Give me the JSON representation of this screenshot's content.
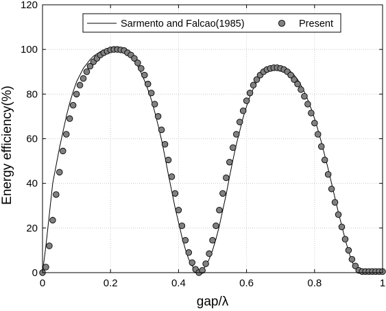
{
  "chart_data": {
    "type": "line",
    "xlabel": "gap/λ",
    "ylabel": "Energy efficiency(%)",
    "xlim": [
      0,
      1
    ],
    "ylim": [
      0,
      120
    ],
    "xticks": [
      "0",
      "0.2",
      "0.4",
      "0.6",
      "0.8",
      "1"
    ],
    "yticks": [
      "0",
      "20",
      "40",
      "60",
      "80",
      "100",
      "120"
    ],
    "grid": true,
    "grid_style": "dotted",
    "legend_position": "top",
    "series": [
      {
        "name": "Sarmento and Falcao(1985)",
        "style": "line",
        "color": "#000000",
        "x": [
          0,
          0.01,
          0.02,
          0.03,
          0.04,
          0.05,
          0.06,
          0.07,
          0.08,
          0.09,
          0.1,
          0.11,
          0.12,
          0.13,
          0.14,
          0.15,
          0.16,
          0.17,
          0.18,
          0.19,
          0.2,
          0.21,
          0.22,
          0.23,
          0.24,
          0.25,
          0.26,
          0.27,
          0.28,
          0.29,
          0.3,
          0.31,
          0.32,
          0.33,
          0.34,
          0.35,
          0.36,
          0.37,
          0.38,
          0.39,
          0.4,
          0.41,
          0.42,
          0.43,
          0.44,
          0.45,
          0.46,
          0.47,
          0.48,
          0.49,
          0.5,
          0.51,
          0.52,
          0.53,
          0.54,
          0.55,
          0.56,
          0.57,
          0.58,
          0.59,
          0.6,
          0.61,
          0.62,
          0.63,
          0.64,
          0.65,
          0.66,
          0.67,
          0.68,
          0.69,
          0.7,
          0.71,
          0.72,
          0.73,
          0.74,
          0.75,
          0.76,
          0.77,
          0.78,
          0.79,
          0.8,
          0.81,
          0.82,
          0.83,
          0.84,
          0.85,
          0.86,
          0.87,
          0.88,
          0.89,
          0.9,
          0.91,
          0.92,
          0.93,
          0.94,
          0.95,
          0.96,
          0.97,
          0.98,
          0.99,
          1.0
        ],
        "y": [
          0,
          12,
          26,
          40,
          48,
          56,
          63,
          70,
          76,
          81,
          85.5,
          88.5,
          91.5,
          93.5,
          95.5,
          97,
          98,
          99,
          99.6,
          100,
          100,
          100,
          100,
          99.5,
          99,
          98,
          96.5,
          95,
          92.5,
          89.5,
          86,
          82,
          77.5,
          72,
          66,
          59.5,
          52,
          44,
          36.5,
          29,
          22.5,
          16,
          10.5,
          6,
          3,
          1,
          0,
          1,
          3,
          6,
          10,
          15,
          21,
          28,
          35,
          43,
          50.5,
          57.5,
          63.5,
          69.5,
          74.5,
          79,
          82.5,
          85.5,
          88,
          90,
          91,
          91.8,
          92.2,
          92.3,
          92.2,
          91.8,
          91.2,
          90,
          88.5,
          86.5,
          84,
          81,
          77.5,
          73.5,
          69,
          64,
          58.5,
          52.5,
          46.5,
          40,
          33.5,
          27,
          21,
          15,
          9.5,
          5,
          2,
          0.5,
          0,
          0,
          0,
          0,
          0,
          0,
          0
        ]
      },
      {
        "name": "Present",
        "style": "markers",
        "marker_fill": "#808080",
        "marker_edge": "#000000",
        "x": [
          0,
          0.01,
          0.02,
          0.03,
          0.04,
          0.05,
          0.06,
          0.07,
          0.08,
          0.09,
          0.1,
          0.11,
          0.12,
          0.13,
          0.14,
          0.15,
          0.16,
          0.17,
          0.18,
          0.19,
          0.2,
          0.21,
          0.22,
          0.23,
          0.24,
          0.25,
          0.26,
          0.27,
          0.28,
          0.29,
          0.3,
          0.31,
          0.32,
          0.33,
          0.34,
          0.35,
          0.36,
          0.37,
          0.38,
          0.39,
          0.4,
          0.41,
          0.42,
          0.43,
          0.44,
          0.45,
          0.46,
          0.47,
          0.48,
          0.49,
          0.5,
          0.51,
          0.52,
          0.53,
          0.54,
          0.55,
          0.56,
          0.57,
          0.58,
          0.59,
          0.6,
          0.61,
          0.62,
          0.63,
          0.64,
          0.65,
          0.66,
          0.67,
          0.68,
          0.69,
          0.7,
          0.71,
          0.72,
          0.73,
          0.74,
          0.75,
          0.76,
          0.77,
          0.78,
          0.79,
          0.8,
          0.81,
          0.82,
          0.83,
          0.84,
          0.85,
          0.86,
          0.87,
          0.88,
          0.89,
          0.9,
          0.91,
          0.92,
          0.93,
          0.94,
          0.95,
          0.96,
          0.97,
          0.98,
          0.99,
          1.0
        ],
        "y": [
          0,
          2.5,
          12,
          23.5,
          35,
          45,
          54.5,
          62,
          69,
          75,
          80,
          84,
          87,
          90,
          92.5,
          94.5,
          96,
          97.5,
          98.5,
          99.2,
          99.8,
          100,
          100,
          99.8,
          99.5,
          98.5,
          97.5,
          96,
          94,
          91.5,
          88.5,
          84.5,
          80.5,
          75.5,
          70,
          64,
          57.5,
          50.5,
          43,
          35.5,
          28,
          21,
          14.5,
          9,
          4.5,
          1.5,
          0,
          1,
          4,
          8.5,
          14.5,
          21,
          28,
          35.5,
          42.5,
          49.5,
          56,
          62,
          67.5,
          72.5,
          77,
          80.5,
          84,
          86.5,
          88.5,
          90,
          91,
          91.5,
          91.8,
          91.8,
          91.5,
          91,
          90,
          88.5,
          86.5,
          84.5,
          82,
          79,
          75.5,
          71.5,
          67,
          62,
          56.5,
          50.5,
          44,
          37.5,
          31.5,
          26,
          20.5,
          15,
          10,
          6,
          3,
          1,
          0.5,
          0.5,
          0.5,
          0.5,
          0.5,
          0.5,
          0.5
        ]
      }
    ]
  }
}
